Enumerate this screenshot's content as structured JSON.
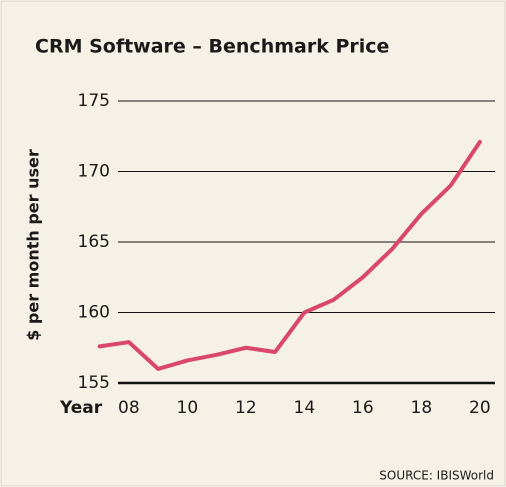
{
  "chart_data": {
    "type": "line",
    "title": "CRM Software – Benchmark Price",
    "ylabel": "$ per month per user",
    "xlabel": "Year",
    "source": "SOURCE: IBISWorld",
    "x": [
      7,
      8,
      9,
      10,
      11,
      12,
      13,
      14,
      15,
      16,
      17,
      18,
      19,
      20
    ],
    "series": [
      {
        "name": "Benchmark Price",
        "color": "#d9486a",
        "values": [
          157.6,
          157.9,
          156.0,
          156.6,
          157.0,
          157.5,
          157.2,
          160.0,
          160.9,
          162.5,
          164.5,
          167.0,
          169.0,
          172.1
        ]
      }
    ],
    "xlim": [
      6.5,
      20.5
    ],
    "xticks": [
      {
        "value": 8,
        "label": "08"
      },
      10,
      12,
      14,
      16,
      18,
      20
    ],
    "ylim": [
      155,
      175
    ],
    "yticks": [
      155,
      160,
      165,
      170,
      175
    ],
    "grid": true
  }
}
